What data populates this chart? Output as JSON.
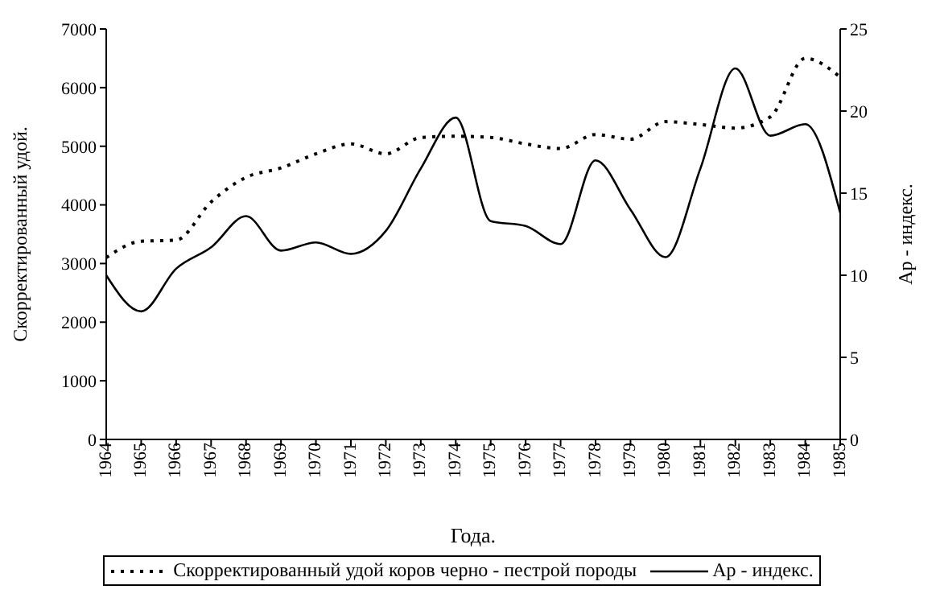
{
  "chart_data": {
    "type": "line",
    "xlabel": "Года.",
    "ylabel": "Скорректированный удой.",
    "y2label": "Ар - индекс.",
    "categories": [
      "1964",
      "1965",
      "1966",
      "1967",
      "1968",
      "1969",
      "1970",
      "1971",
      "1972",
      "1973",
      "1974",
      "1975",
      "1976",
      "1977",
      "1978",
      "1979",
      "1980",
      "1981",
      "1982",
      "1983",
      "1984",
      "1985"
    ],
    "series": [
      {
        "name": "Скорректированный удой коров черно - пестрой породы",
        "color": "#000000",
        "line_style": "dotted",
        "values": [
          3100,
          3380,
          3400,
          4050,
          4470,
          4630,
          4870,
          5040,
          4870,
          5150,
          5170,
          5150,
          5040,
          4960,
          5200,
          5120,
          5420,
          5370,
          5310,
          5500,
          6500,
          6180
        ]
      },
      {
        "name": "Ар - индекс.",
        "color": "#000000",
        "line_style": "solid",
        "axis": "y2",
        "values": [
          10.0,
          7.8,
          10.4,
          11.7,
          13.6,
          11.5,
          12.0,
          11.3,
          12.7,
          16.5,
          19.6,
          13.3,
          13.0,
          11.9,
          17.0,
          14.0,
          11.1,
          16.5,
          22.6,
          18.5,
          19.2,
          13.8
        ]
      }
    ],
    "ylim": [
      0,
      7000
    ],
    "yticks": [
      0,
      1000,
      2000,
      3000,
      4000,
      5000,
      6000,
      7000
    ],
    "y2lim": [
      0,
      25
    ],
    "y2ticks": [
      0,
      5,
      10,
      15,
      20,
      25
    ],
    "grid": false,
    "legend": "bottom",
    "marker": "none"
  }
}
